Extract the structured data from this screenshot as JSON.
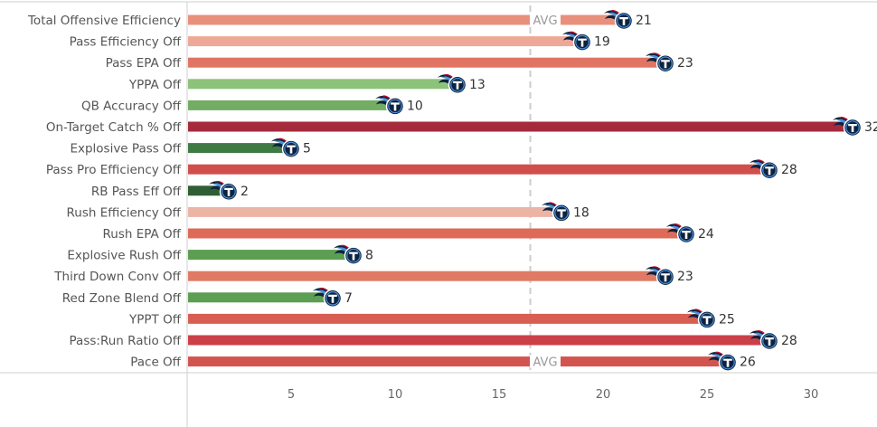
{
  "chart_data": {
    "type": "bar",
    "orientation": "horizontal",
    "categories": [
      "Total Offensive Efficiency",
      "Pass Efficiency Off",
      "Pass EPA Off",
      "YPPA Off",
      "QB Accuracy Off",
      "On-Target Catch % Off",
      "Explosive Pass Off",
      "Pass Pro Efficiency Off",
      "RB Pass Eff Off",
      "Rush Efficiency Off",
      "Rush EPA Off",
      "Explosive Rush Off",
      "Third Down Conv Off",
      "Red Zone Blend Off",
      "YPPT Off",
      "Pass:Run Ratio Off",
      "Pace Off"
    ],
    "values": [
      21,
      19,
      23,
      13,
      10,
      32,
      5,
      28,
      2,
      18,
      24,
      8,
      23,
      7,
      25,
      28,
      26
    ],
    "value_labels": [
      "21",
      "19",
      "23",
      "13",
      "10",
      "32",
      "5",
      "28",
      "2",
      "18",
      "24",
      "8",
      "23",
      "7",
      "25",
      "28",
      "26"
    ],
    "bar_colors": [
      "#e8907c",
      "#eea898",
      "#e07563",
      "#8cc27a",
      "#72ad63",
      "#a52a3c",
      "#3f7a45",
      "#d04f4d",
      "#2f5e35",
      "#ecb4a5",
      "#de6a58",
      "#5c9e52",
      "#e07a65",
      "#5c9e52",
      "#d95e52",
      "#cc3f48",
      "#d2544f"
    ],
    "avg_value": 16.5,
    "avg_label": "AVG",
    "x_ticks": [
      5,
      10,
      15,
      20,
      25,
      30
    ],
    "x_tick_labels": [
      "5",
      "10",
      "15",
      "20",
      "25",
      "30"
    ],
    "xlim": [
      0,
      33
    ],
    "title": "",
    "xlabel": "",
    "ylabel": "",
    "grid": false,
    "legend": "none",
    "marker_icon": "titans-logo-icon",
    "colors": {
      "logo_navy": "#0c2340",
      "logo_blue": "#4b92db",
      "logo_red": "#c8102e",
      "axis": "#cfcfcf",
      "avg_line": "#cccccc"
    }
  }
}
